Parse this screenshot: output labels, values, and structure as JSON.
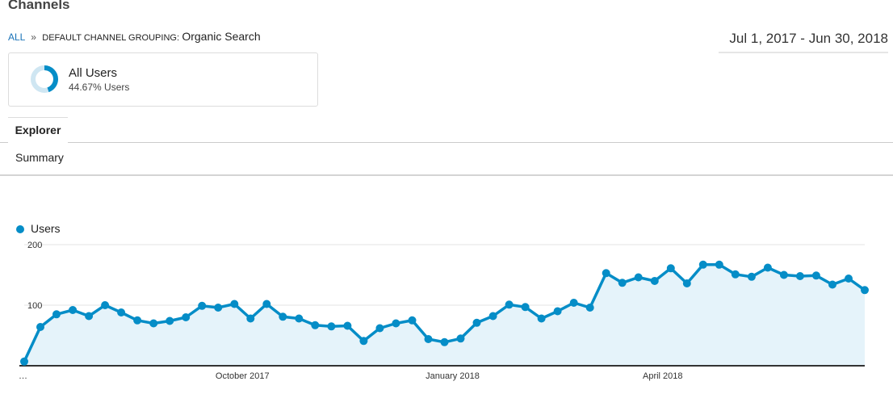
{
  "header": {
    "title": "Channels",
    "breadcrumb": {
      "all": "ALL",
      "separator": "»",
      "group": "DEFAULT CHANNEL GROUPING:",
      "value": "Organic Search"
    },
    "date_range": "Jul 1, 2017 - Jun 30, 2018"
  },
  "segment": {
    "name": "All Users",
    "percent_label": "44.67% Users",
    "percent_value": 44.67,
    "icon": "donut-icon"
  },
  "tabs": {
    "explorer": "Explorer",
    "summary": "Summary"
  },
  "colors": {
    "series": "#058dc7",
    "fill": "#e5f3fa",
    "link": "#1a73b8"
  },
  "chart_data": {
    "type": "area",
    "legend": [
      "Users"
    ],
    "series": [
      {
        "name": "Users",
        "values": [
          7,
          64,
          85,
          92,
          82,
          100,
          88,
          75,
          70,
          74,
          80,
          99,
          96,
          102,
          78,
          102,
          81,
          78,
          67,
          65,
          66,
          41,
          62,
          70,
          75,
          44,
          39,
          45,
          71,
          82,
          101,
          97,
          78,
          90,
          104,
          96,
          153,
          137,
          146,
          140,
          161,
          136,
          167,
          167,
          151,
          147,
          162,
          150,
          148,
          149,
          134,
          144,
          125
        ]
      }
    ],
    "x_tick_labels": [
      "…",
      "October 2017",
      "January 2018",
      "April 2018"
    ],
    "x_tick_index": [
      0,
      13.5,
      26.5,
      39.5
    ],
    "y_ticks": [
      100,
      200
    ],
    "y_tick_labels": [
      "100",
      "200"
    ],
    "ylim": [
      0,
      200
    ],
    "grid": true
  }
}
